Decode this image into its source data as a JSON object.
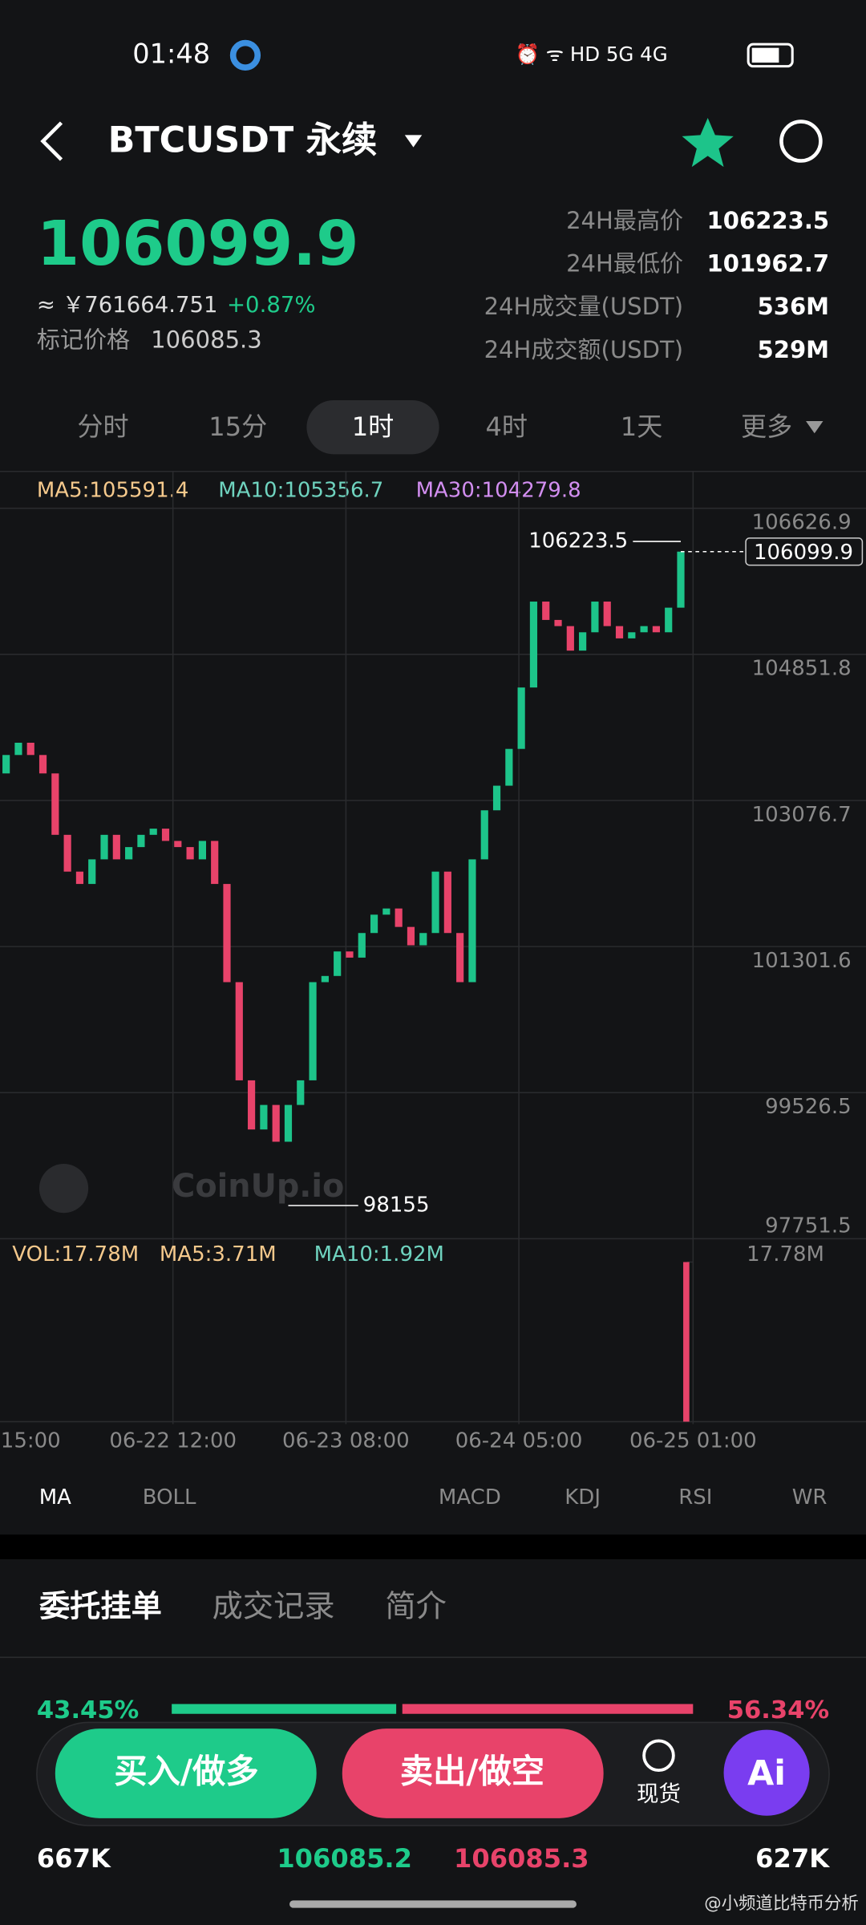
{
  "status": {
    "time": "01:48"
  },
  "header": {
    "title": "BTCUSDT 永续"
  },
  "ticker": {
    "price": "106099.9",
    "cny": "≈ ￥761664.751",
    "change": "+0.87%",
    "mark_label": "标记价格",
    "mark": "106085.3"
  },
  "stats": [
    {
      "label": "24H最高价",
      "value": "106223.5"
    },
    {
      "label": "24H最低价",
      "value": "101962.7"
    },
    {
      "label": "24H成交量(USDT)",
      "value": "536M"
    },
    {
      "label": "24H成交额(USDT)",
      "value": "529M"
    }
  ],
  "intervals": {
    "items": [
      "分时",
      "15分",
      "1时",
      "4时",
      "1天",
      "更多"
    ],
    "active": 2
  },
  "ma": [
    "MA5:105591.4",
    "MA10:105356.7",
    "MA30:104279.8"
  ],
  "chart": {
    "type": "candlestick",
    "ylim": [
      97751.5,
      106626.9
    ],
    "yticks": [
      106626.9,
      104851.8,
      103076.7,
      101301.6,
      99526.5,
      97751.5
    ],
    "last_price": 106099.9,
    "high": 106223.5,
    "low": 98155,
    "open": 103405,
    "closes": [
      103629,
      103778,
      103629,
      103405,
      102659,
      102212,
      102062,
      102361,
      102659,
      102361,
      102510,
      102659,
      102734,
      102585,
      102510,
      102361,
      102585,
      102062,
      100869,
      99676,
      99079,
      99377,
      98930,
      99377,
      99676,
      100869,
      100944,
      101242,
      101167,
      101466,
      101689,
      101764,
      101540,
      101317,
      101466,
      102212,
      101466,
      100869,
      102361,
      102957,
      103256,
      103703,
      104449,
      105493,
      105270,
      105195,
      104897,
      105120,
      105493,
      105195,
      105046,
      105120,
      105195,
      105120,
      105419,
      106099.9
    ],
    "x_labels": [
      "15:00",
      "06-22 12:00",
      "06-23 08:00",
      "06-24 05:00",
      "06-25 01:00"
    ],
    "up_color": "#1dc48a",
    "down_color": "#e8436a",
    "watermark": "CoinUp.io"
  },
  "volume": {
    "labels": [
      "VOL:17.78M",
      "MA5:3.71M",
      "MA10:1.92M"
    ],
    "ylim": [
      0,
      17.78
    ],
    "ytick": {
      "value": 17.78,
      "label": "17.78M"
    },
    "last": 17.78
  },
  "indicators": [
    "MA",
    "BOLL",
    "MACD",
    "KDJ",
    "RSI",
    "WR"
  ],
  "tabs": [
    "委托挂单",
    "成交记录",
    "简介"
  ],
  "orderbook": {
    "buy_pct": "43.45%",
    "sell_pct": "56.34%",
    "buy_qty": "667K",
    "bid": "106085.2",
    "ask": "106085.3",
    "sell_qty": "627K"
  },
  "buttons": {
    "buy": "买入/做多",
    "sell": "卖出/做空",
    "spot": "现货",
    "ai": "Ai"
  },
  "footer": "@小频道比特币分析"
}
